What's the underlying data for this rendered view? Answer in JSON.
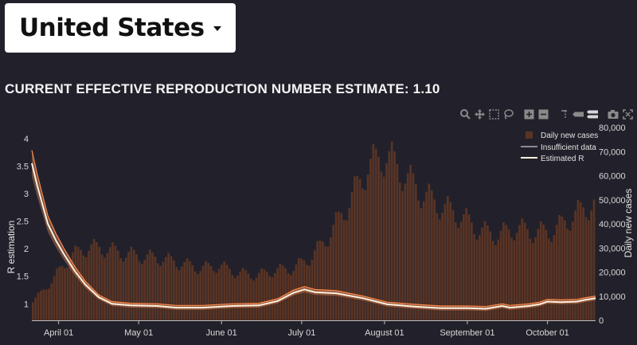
{
  "selector": {
    "value": "United States"
  },
  "headline": {
    "text": "CURRENT EFFECTIVE REPRODUCTION NUMBER ESTIMATE: 1.10"
  },
  "modebar": {
    "buttons": [
      "zoom-icon",
      "pan-icon",
      "box-select-icon",
      "lasso-select-icon",
      "zoom-in-icon",
      "zoom-out-icon",
      "spike-lines-icon",
      "hover-closest-icon",
      "hover-compare-icon",
      "camera-icon",
      "reset-axes-icon"
    ]
  },
  "colors": {
    "bg": "#22212b",
    "bars": "#5a3424",
    "band": "#ff9a63",
    "line": "#fff0de"
  },
  "chart_data": {
    "type": "bar+line",
    "x_start": "2020-03-22",
    "x_end": "2020-10-19",
    "xticks": [
      {
        "date": "2020-04-01",
        "label": "April 01"
      },
      {
        "date": "2020-05-01",
        "label": "May 01"
      },
      {
        "date": "2020-06-01",
        "label": "June 01"
      },
      {
        "date": "2020-07-01",
        "label": "July 01"
      },
      {
        "date": "2020-08-01",
        "label": "August 01"
      },
      {
        "date": "2020-09-01",
        "label": "September 01"
      },
      {
        "date": "2020-10-01",
        "label": "October 01"
      }
    ],
    "ylabel": "R estimation",
    "y2label": "Daily new cases",
    "ylim": [
      0.7,
      4.2
    ],
    "yticks": [
      "1",
      "1.5",
      "2",
      "2.5",
      "3",
      "3.5",
      "4"
    ],
    "y2lim": [
      0,
      80000
    ],
    "y2ticks": [
      "0",
      "10,000",
      "20,000",
      "30,000",
      "40,000",
      "50,000",
      "60,000",
      "70,000",
      "80,000"
    ],
    "legend": {
      "position": "top-right",
      "entries": [
        "Daily new cases",
        "Insufficient data",
        "Estimated R"
      ]
    },
    "cases_weekly": [
      8000,
      16500,
      27000,
      31000,
      30000,
      28000,
      27000,
      26000,
      24000,
      22000,
      23000,
      20000,
      19000,
      21000,
      22000,
      27000,
      37000,
      50000,
      65000,
      70000,
      61000,
      53000,
      48000,
      44000,
      38000,
      36000,
      39000,
      37000,
      38000,
      44000,
      49000,
      50000,
      52000,
      55000
    ],
    "r_points": [
      {
        "date": "2020-03-22",
        "r": 3.55
      },
      {
        "date": "2020-03-24",
        "r": 3.15
      },
      {
        "date": "2020-03-26",
        "r": 2.8
      },
      {
        "date": "2020-03-28",
        "r": 2.45
      },
      {
        "date": "2020-03-31",
        "r": 2.15
      },
      {
        "date": "2020-04-03",
        "r": 1.9
      },
      {
        "date": "2020-04-07",
        "r": 1.6
      },
      {
        "date": "2020-04-11",
        "r": 1.35
      },
      {
        "date": "2020-04-16",
        "r": 1.12
      },
      {
        "date": "2020-04-21",
        "r": 1.0
      },
      {
        "date": "2020-04-28",
        "r": 0.97
      },
      {
        "date": "2020-05-08",
        "r": 0.96
      },
      {
        "date": "2020-05-15",
        "r": 0.93
      },
      {
        "date": "2020-05-25",
        "r": 0.93
      },
      {
        "date": "2020-06-05",
        "r": 0.96
      },
      {
        "date": "2020-06-15",
        "r": 0.97
      },
      {
        "date": "2020-06-22",
        "r": 1.05
      },
      {
        "date": "2020-06-28",
        "r": 1.2
      },
      {
        "date": "2020-07-02",
        "r": 1.26
      },
      {
        "date": "2020-07-06",
        "r": 1.21
      },
      {
        "date": "2020-07-14",
        "r": 1.19
      },
      {
        "date": "2020-07-24",
        "r": 1.1
      },
      {
        "date": "2020-08-02",
        "r": 0.99
      },
      {
        "date": "2020-08-12",
        "r": 0.95
      },
      {
        "date": "2020-08-22",
        "r": 0.92
      },
      {
        "date": "2020-09-01",
        "r": 0.92
      },
      {
        "date": "2020-09-08",
        "r": 0.91
      },
      {
        "date": "2020-09-14",
        "r": 0.96
      },
      {
        "date": "2020-09-17",
        "r": 0.93
      },
      {
        "date": "2020-09-24",
        "r": 0.96
      },
      {
        "date": "2020-09-28",
        "r": 0.99
      },
      {
        "date": "2020-10-01",
        "r": 1.04
      },
      {
        "date": "2020-10-06",
        "r": 1.03
      },
      {
        "date": "2020-10-12",
        "r": 1.04
      },
      {
        "date": "2020-10-15",
        "r": 1.07
      },
      {
        "date": "2020-10-19",
        "r": 1.1
      }
    ]
  }
}
